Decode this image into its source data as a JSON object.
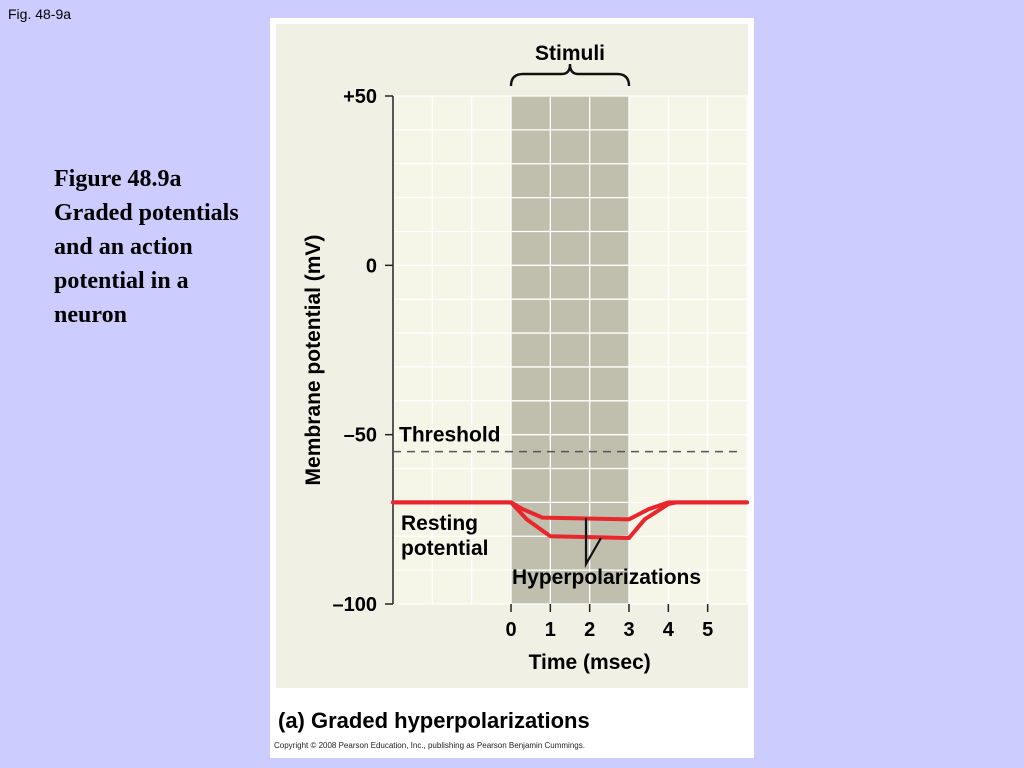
{
  "fig_label": "Fig. 48-9a",
  "caption": "Figure 48.9a Graded potentials and an action potential in a neuron",
  "panel_title": "(a) Graded hyperpolarizations",
  "copyright": "Copyright © 2008 Pearson Education, Inc., publishing as Pearson Benjamin Cummings.",
  "colors": {
    "slide_bg": "#ccccfe",
    "plot_bg": "#f5f5e8",
    "grid": "#ffffff",
    "stimulus_band": "#c0bfae",
    "trace": "#e8262b",
    "threshold_line": "#555555"
  },
  "chart_data": {
    "type": "line",
    "xlabel": "Time (msec)",
    "ylabel": "Membrane potential (mV)",
    "xlim": [
      -3,
      6
    ],
    "ylim": [
      -100,
      50
    ],
    "x_ticks": [
      0,
      1,
      2,
      3,
      4,
      5
    ],
    "y_ticks": [
      {
        "value": 50,
        "label": "+50"
      },
      {
        "value": 0,
        "label": "0"
      },
      {
        "value": -50,
        "label": "–50"
      },
      {
        "value": -100,
        "label": "–100"
      }
    ],
    "grid": true,
    "stimulus": {
      "label": "Stimuli",
      "x_start": 0,
      "x_end": 3
    },
    "threshold": {
      "label": "Threshold",
      "value": -55
    },
    "resting_label": "Resting potential",
    "annotation": "Hyperpolarizations",
    "series": [
      {
        "x": [
          -3,
          0,
          0.3,
          0.8,
          3,
          3.5,
          4,
          4.5,
          6
        ],
        "y": [
          -70,
          -70,
          -72,
          -74.5,
          -75,
          -72,
          -70,
          -70,
          -70
        ]
      },
      {
        "x": [
          -3,
          0,
          0.4,
          1.0,
          3,
          3.4,
          4,
          4.2,
          6
        ],
        "y": [
          -70,
          -70,
          -75,
          -80,
          -80.5,
          -75,
          -70.5,
          -70,
          -70
        ]
      }
    ]
  }
}
